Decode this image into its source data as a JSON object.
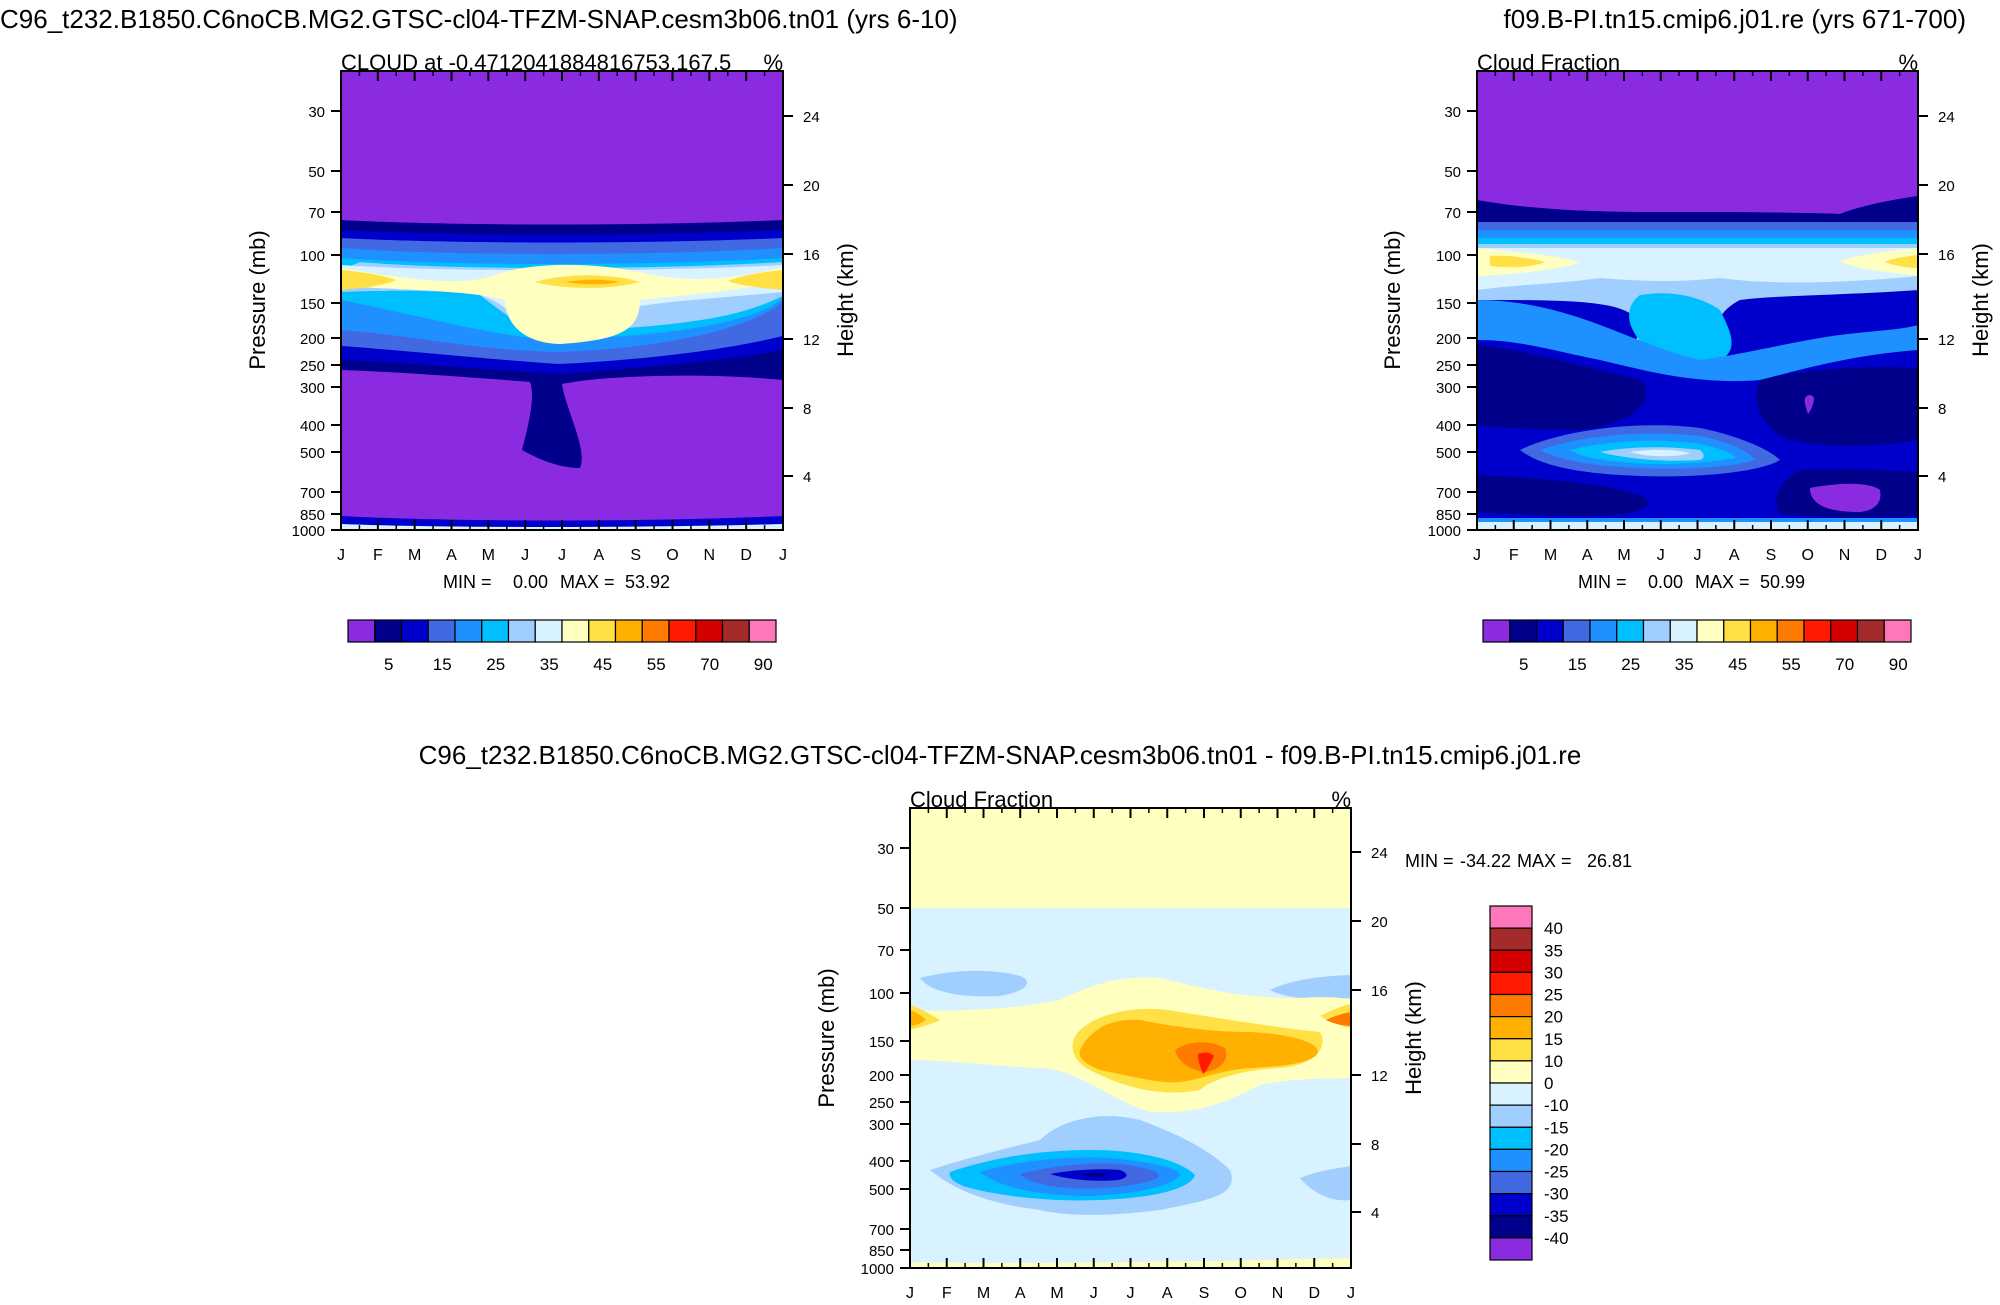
{
  "colors": {
    "cloud_scale": [
      "#8a2be2",
      "#00008b",
      "#0000cd",
      "#4169e1",
      "#1e90ff",
      "#00bfff",
      "#a0cfff",
      "#d8f2ff",
      "#ffffc0",
      "#ffe045",
      "#ffb000",
      "#ff7a00",
      "#ff1a00",
      "#d40000",
      "#a52a2a",
      "#ff77bb"
    ],
    "diff_scale": [
      "#8a2be2",
      "#00008b",
      "#0000cd",
      "#4169e1",
      "#1e90ff",
      "#00bfff",
      "#a0cfff",
      "#d8f2ff",
      "#ffffc0",
      "#ffe045",
      "#ffb000",
      "#ff7a00",
      "#ff1a00",
      "#d40000",
      "#a52a2a",
      "#ff77bb"
    ]
  },
  "chart_data": [
    {
      "type": "heatmap",
      "panel": "top-left",
      "case_title": "C96_t232.B1850.C6noCB.MG2.GTSC-cl04-TFZM-SNAP.cesm3b06.tn01 (yrs 6-10)",
      "left_string": "CLOUD at -0.4712041884816753,167.5",
      "right_string": "%",
      "xlabel": "",
      "ylabel": "Pressure (mb)",
      "ylabel_right": "Height (km)",
      "x_ticks": [
        "J",
        "F",
        "M",
        "A",
        "M",
        "J",
        "J",
        "A",
        "S",
        "O",
        "N",
        "D",
        "J"
      ],
      "y_ticks": [
        "30",
        "50",
        "70",
        "100",
        "150",
        "200",
        "250",
        "300",
        "400",
        "500",
        "700",
        "850",
        "1000"
      ],
      "y_tick_values": [
        30,
        50,
        70,
        100,
        150,
        200,
        250,
        300,
        400,
        500,
        700,
        850,
        1000
      ],
      "y_ticks_right": [
        "24",
        "20",
        "16",
        "12",
        "8",
        "4"
      ],
      "ylim": [
        1000,
        20
      ],
      "min_label": "MIN =",
      "min_value": "0.00",
      "max_label": "MAX =",
      "max_value": "53.92",
      "colorbar_labels": [
        "5",
        "15",
        "25",
        "35",
        "45",
        "55",
        "70",
        "90"
      ],
      "colorbar_levels": [
        5,
        10,
        15,
        20,
        25,
        30,
        35,
        40,
        45,
        50,
        55,
        60,
        70,
        80,
        90
      ],
      "approx_structure": [
        {
          "pressure_mb": "20-85",
          "value_pct": 0
        },
        {
          "pressure_mb": "85-100",
          "value_pct": 15
        },
        {
          "pressure_mb": "120",
          "value_pct": 50
        },
        {
          "pressure_mb": "150-250",
          "value_pct": 35
        },
        {
          "pressure_mb": "300-1000",
          "value_pct": 0
        }
      ]
    },
    {
      "type": "heatmap",
      "panel": "top-right",
      "case_title": "f09.B-PI.tn15.cmip6.j01.re (yrs 671-700)",
      "left_string": "Cloud Fraction",
      "right_string": "%",
      "xlabel": "",
      "ylabel": "Pressure (mb)",
      "ylabel_right": "Height (km)",
      "x_ticks": [
        "J",
        "F",
        "M",
        "A",
        "M",
        "J",
        "J",
        "A",
        "S",
        "O",
        "N",
        "D",
        "J"
      ],
      "y_ticks": [
        "30",
        "50",
        "70",
        "100",
        "150",
        "200",
        "250",
        "300",
        "400",
        "500",
        "700",
        "850",
        "1000"
      ],
      "y_tick_values": [
        30,
        50,
        70,
        100,
        150,
        200,
        250,
        300,
        400,
        500,
        700,
        850,
        1000
      ],
      "y_ticks_right": [
        "24",
        "20",
        "16",
        "12",
        "8",
        "4"
      ],
      "ylim": [
        1000,
        20
      ],
      "min_label": "MIN =",
      "min_value": "0.00",
      "max_label": "MAX =",
      "max_value": "50.99",
      "colorbar_labels": [
        "5",
        "15",
        "25",
        "35",
        "45",
        "55",
        "70",
        "90"
      ],
      "colorbar_levels": [
        5,
        10,
        15,
        20,
        25,
        30,
        35,
        40,
        45,
        50,
        55,
        60,
        70,
        80,
        90
      ],
      "approx_structure": [
        {
          "pressure_mb": "20-60",
          "value_pct": 0
        },
        {
          "pressure_mb": "100",
          "value_pct": 40
        },
        {
          "pressure_mb": "150-250",
          "value_pct": 20
        },
        {
          "pressure_mb": "500",
          "value_pct": 30
        },
        {
          "pressure_mb": "700-1000",
          "value_pct": 10
        }
      ]
    },
    {
      "type": "heatmap",
      "panel": "bottom",
      "case_title": "C96_t232.B1850.C6noCB.MG2.GTSC-cl04-TFZM-SNAP.cesm3b06.tn01 - f09.B-PI.tn15.cmip6.j01.re",
      "left_string": "Cloud Fraction",
      "right_string": "%",
      "xlabel": "",
      "ylabel": "Pressure (mb)",
      "ylabel_right": "Height (km)",
      "x_ticks": [
        "J",
        "F",
        "M",
        "A",
        "M",
        "J",
        "J",
        "A",
        "S",
        "O",
        "N",
        "D",
        "J"
      ],
      "y_ticks": [
        "30",
        "50",
        "70",
        "100",
        "150",
        "200",
        "250",
        "300",
        "400",
        "500",
        "700",
        "850",
        "1000"
      ],
      "y_tick_values": [
        30,
        50,
        70,
        100,
        150,
        200,
        250,
        300,
        400,
        500,
        700,
        850,
        1000
      ],
      "y_ticks_right": [
        "24",
        "20",
        "16",
        "12",
        "8",
        "4"
      ],
      "ylim": [
        1000,
        20
      ],
      "min_label": "MIN =",
      "min_value": "-34.22",
      "max_label": "MAX =",
      "max_value": "26.81",
      "colorbar_labels": [
        "40",
        "35",
        "30",
        "25",
        "20",
        "15",
        "10",
        "0",
        "-10",
        "-15",
        "-20",
        "-25",
        "-30",
        "-35",
        "-40"
      ],
      "colorbar_levels": [
        -40,
        -35,
        -30,
        -25,
        -20,
        -15,
        -10,
        0,
        10,
        15,
        20,
        25,
        30,
        35,
        40
      ],
      "approx_structure": [
        {
          "pressure_mb": "20-50",
          "value_pct": 5
        },
        {
          "pressure_mb": "150-200",
          "value_pct": 20
        },
        {
          "pressure_mb": "500",
          "value_pct": -30
        },
        {
          "pressure_mb": "other",
          "value_pct": -5
        }
      ]
    }
  ]
}
